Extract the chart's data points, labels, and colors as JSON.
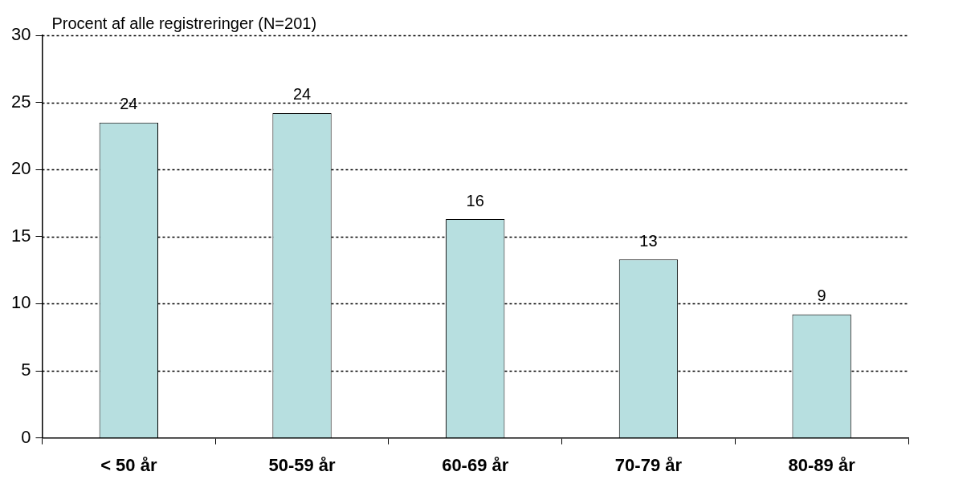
{
  "chart_data": {
    "type": "bar",
    "ylabel": "Procent af alle registreringer (N=201)",
    "categories": [
      "< 50 år",
      "50-59 år",
      "60-69 år",
      "70-79 år",
      "80-89 år"
    ],
    "values": [
      23.5,
      24.2,
      16.3,
      13.3,
      9.2
    ],
    "value_labels": [
      "24",
      "24",
      "16",
      "13",
      "9"
    ],
    "color": "#b7dfe0",
    "ylim": [
      0,
      30
    ],
    "yticks": [
      0,
      5,
      10,
      15,
      20,
      25,
      30
    ],
    "grid": "y",
    "legend": false
  }
}
